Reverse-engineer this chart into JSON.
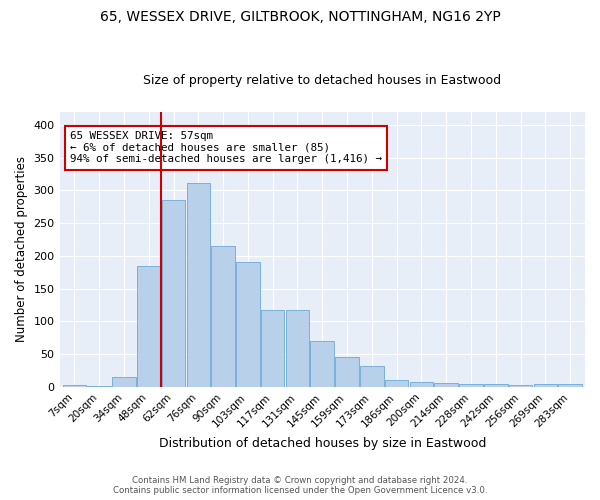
{
  "title": "65, WESSEX DRIVE, GILTBROOK, NOTTINGHAM, NG16 2YP",
  "subtitle": "Size of property relative to detached houses in Eastwood",
  "xlabel": "Distribution of detached houses by size in Eastwood",
  "ylabel": "Number of detached properties",
  "bar_labels": [
    "7sqm",
    "20sqm",
    "34sqm",
    "48sqm",
    "62sqm",
    "76sqm",
    "90sqm",
    "103sqm",
    "117sqm",
    "131sqm",
    "145sqm",
    "159sqm",
    "173sqm",
    "186sqm",
    "200sqm",
    "214sqm",
    "228sqm",
    "242sqm",
    "256sqm",
    "269sqm",
    "283sqm"
  ],
  "bar_values": [
    3,
    1,
    15,
    185,
    285,
    312,
    215,
    190,
    117,
    117,
    70,
    46,
    32,
    10,
    7,
    6,
    5,
    5,
    3,
    4,
    4
  ],
  "bar_color": "#b8d0ea",
  "bar_edgecolor": "#6aaad4",
  "property_line_color": "#cc0000",
  "annotation_text": "65 WESSEX DRIVE: 57sqm\n← 6% of detached houses are smaller (85)\n94% of semi-detached houses are larger (1,416) →",
  "annotation_box_color": "#ffffff",
  "annotation_box_edgecolor": "#cc0000",
  "ylim": [
    0,
    420
  ],
  "yticks": [
    0,
    50,
    100,
    150,
    200,
    250,
    300,
    350,
    400
  ],
  "footer_line1": "Contains HM Land Registry data © Crown copyright and database right 2024.",
  "footer_line2": "Contains public sector information licensed under the Open Government Licence v3.0.",
  "bg_color": "#e8eef8",
  "fig_color": "#ffffff",
  "title_fontsize": 10,
  "subtitle_fontsize": 9
}
